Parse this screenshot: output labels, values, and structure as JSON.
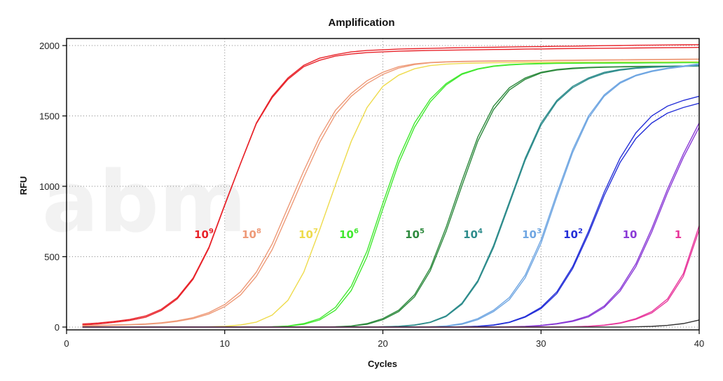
{
  "chart_data": {
    "type": "line",
    "title": "Amplification",
    "xlabel": "Cycles",
    "ylabel": "RFU",
    "xlim": [
      0,
      40
    ],
    "ylim": [
      -20,
      2050
    ],
    "x_ticks": [
      "0",
      "10",
      "20",
      "30",
      "40"
    ],
    "y_ticks": [
      "0",
      "500",
      "1000",
      "1500",
      "2000"
    ],
    "grid": true,
    "watermark": "abm",
    "x": [
      1,
      2,
      3,
      4,
      5,
      6,
      7,
      8,
      9,
      10,
      11,
      12,
      13,
      14,
      15,
      16,
      17,
      18,
      19,
      20,
      21,
      22,
      23,
      24,
      25,
      26,
      27,
      28,
      29,
      30,
      31,
      32,
      33,
      34,
      35,
      36,
      37,
      38,
      39,
      40
    ],
    "series": [
      {
        "label": "10",
        "exponent": "9",
        "color": "#e8232a",
        "replicates": [
          [
            22,
            29,
            40,
            54,
            79,
            127,
            209,
            348,
            567,
            870,
            1163,
            1450,
            1640,
            1770,
            1860,
            1910,
            1935,
            1955,
            1965,
            1970,
            1975,
            1978,
            1980,
            1983,
            1985,
            1987,
            1988,
            1990,
            1992,
            1993,
            1995,
            1996,
            1998,
            1999,
            2000,
            2002,
            2003,
            2004,
            2005,
            2006
          ],
          [
            15,
            22,
            33,
            47,
            70,
            118,
            200,
            340,
            560,
            865,
            1160,
            1445,
            1630,
            1760,
            1850,
            1895,
            1925,
            1940,
            1950,
            1955,
            1960,
            1963,
            1965,
            1967,
            1969,
            1970,
            1972,
            1973,
            1975,
            1976,
            1978,
            1979,
            1980,
            1981,
            1982,
            1983,
            1984,
            1985,
            1986,
            1987
          ]
        ]
      },
      {
        "label": "10",
        "exponent": "8",
        "color": "#ee9a78",
        "replicates": [
          [
            10,
            12,
            15,
            18,
            23,
            31,
            45,
            67,
            103,
            160,
            250,
            390,
            590,
            850,
            1110,
            1350,
            1540,
            1660,
            1750,
            1810,
            1850,
            1870,
            1880,
            1885,
            1888,
            1890,
            1891,
            1892,
            1893,
            1894,
            1895,
            1896,
            1897,
            1898,
            1899,
            1900,
            1901,
            1902,
            1903,
            1904
          ],
          [
            8,
            10,
            13,
            16,
            20,
            27,
            40,
            60,
            93,
            145,
            228,
            360,
            550,
            805,
            1065,
            1310,
            1510,
            1640,
            1730,
            1795,
            1840,
            1865,
            1878,
            1883,
            1886,
            1888,
            1889,
            1890,
            1891,
            1892,
            1893,
            1894,
            1895,
            1896,
            1897,
            1898,
            1899,
            1900,
            1901,
            1902
          ]
        ]
      },
      {
        "label": "10",
        "exponent": "7",
        "color": "#eedb4c",
        "replicates": [
          [
            0,
            0,
            0,
            0,
            0,
            0,
            0,
            0,
            2,
            5,
            15,
            35,
            85,
            190,
            390,
            690,
            1010,
            1320,
            1560,
            1710,
            1790,
            1835,
            1858,
            1868,
            1873,
            1876,
            1878,
            1879,
            1880,
            1880,
            1881,
            1881,
            1882,
            1882,
            1883,
            1883,
            1884,
            1884,
            1885,
            1885
          ]
        ]
      },
      {
        "label": "10",
        "exponent": "6",
        "color": "#42e830",
        "replicates": [
          [
            0,
            0,
            0,
            0,
            0,
            0,
            0,
            0,
            0,
            0,
            0,
            0,
            2,
            8,
            25,
            60,
            140,
            290,
            540,
            880,
            1200,
            1450,
            1620,
            1730,
            1800,
            1835,
            1855,
            1865,
            1870,
            1873,
            1875,
            1876,
            1877,
            1877,
            1878,
            1878,
            1879,
            1879,
            1880,
            1880
          ],
          [
            0,
            0,
            0,
            0,
            0,
            0,
            0,
            0,
            0,
            0,
            0,
            0,
            2,
            6,
            20,
            50,
            120,
            260,
            500,
            840,
            1165,
            1420,
            1600,
            1720,
            1795,
            1832,
            1852,
            1862,
            1868,
            1871,
            1873,
            1874,
            1875,
            1875,
            1876,
            1876,
            1877,
            1877,
            1878,
            1878
          ]
        ]
      },
      {
        "label": "10",
        "exponent": "5",
        "color": "#2e8a3e",
        "replicates": [
          [
            0,
            0,
            0,
            0,
            0,
            0,
            0,
            0,
            0,
            0,
            0,
            0,
            0,
            0,
            0,
            0,
            2,
            8,
            25,
            60,
            120,
            230,
            420,
            710,
            1040,
            1350,
            1570,
            1700,
            1770,
            1810,
            1830,
            1840,
            1845,
            1848,
            1850,
            1852,
            1853,
            1854,
            1855,
            1856
          ],
          [
            0,
            0,
            0,
            0,
            0,
            0,
            0,
            0,
            0,
            0,
            0,
            0,
            0,
            0,
            0,
            0,
            2,
            6,
            20,
            52,
            110,
            215,
            400,
            680,
            1005,
            1320,
            1545,
            1685,
            1760,
            1805,
            1826,
            1836,
            1842,
            1846,
            1848,
            1850,
            1851,
            1852,
            1853,
            1854
          ]
        ]
      },
      {
        "label": "10",
        "exponent": "4",
        "color": "#2e8c8c",
        "replicates": [
          [
            0,
            0,
            0,
            0,
            0,
            0,
            0,
            0,
            0,
            0,
            0,
            0,
            0,
            0,
            0,
            0,
            0,
            0,
            0,
            2,
            6,
            15,
            35,
            80,
            170,
            330,
            580,
            890,
            1200,
            1450,
            1610,
            1710,
            1770,
            1810,
            1830,
            1842,
            1848,
            1852,
            1855,
            1857
          ],
          [
            0,
            0,
            0,
            0,
            0,
            0,
            0,
            0,
            0,
            0,
            0,
            0,
            0,
            0,
            0,
            0,
            0,
            0,
            0,
            2,
            5,
            13,
            32,
            75,
            162,
            320,
            565,
            875,
            1185,
            1435,
            1600,
            1700,
            1762,
            1802,
            1825,
            1838,
            1845,
            1850,
            1853,
            1855
          ]
        ]
      },
      {
        "label": "10",
        "exponent": "3",
        "color": "#6fa6e2",
        "replicates": [
          [
            0,
            0,
            0,
            0,
            0,
            0,
            0,
            0,
            0,
            0,
            0,
            0,
            0,
            0,
            0,
            0,
            0,
            0,
            0,
            0,
            0,
            0,
            2,
            8,
            25,
            60,
            120,
            210,
            370,
            620,
            950,
            1260,
            1500,
            1650,
            1740,
            1790,
            1820,
            1840,
            1855,
            1870
          ],
          [
            0,
            0,
            0,
            0,
            0,
            0,
            0,
            0,
            0,
            0,
            0,
            0,
            0,
            0,
            0,
            0,
            0,
            0,
            0,
            0,
            0,
            0,
            2,
            6,
            20,
            52,
            110,
            195,
            350,
            595,
            925,
            1240,
            1485,
            1640,
            1732,
            1785,
            1815,
            1836,
            1850,
            1865
          ]
        ]
      },
      {
        "label": "10",
        "exponent": "2",
        "color": "#2530d8",
        "replicates": [
          [
            0,
            0,
            0,
            0,
            0,
            0,
            0,
            0,
            0,
            0,
            0,
            0,
            0,
            0,
            0,
            0,
            0,
            0,
            0,
            0,
            0,
            0,
            0,
            0,
            2,
            6,
            15,
            35,
            75,
            140,
            250,
            430,
            680,
            960,
            1200,
            1380,
            1500,
            1570,
            1610,
            1640
          ],
          [
            0,
            0,
            0,
            0,
            0,
            0,
            0,
            0,
            0,
            0,
            0,
            0,
            0,
            0,
            0,
            0,
            0,
            0,
            0,
            0,
            0,
            0,
            0,
            0,
            2,
            5,
            13,
            32,
            70,
            132,
            238,
            415,
            660,
            935,
            1170,
            1340,
            1450,
            1520,
            1560,
            1590
          ]
        ]
      },
      {
        "label": "10",
        "exponent": "",
        "color": "#8a3ad6",
        "replicates": [
          [
            0,
            0,
            0,
            0,
            0,
            0,
            0,
            0,
            0,
            0,
            0,
            0,
            0,
            0,
            0,
            0,
            0,
            0,
            0,
            0,
            0,
            0,
            0,
            0,
            0,
            0,
            0,
            2,
            5,
            12,
            25,
            45,
            80,
            150,
            270,
            450,
            700,
            980,
            1230,
            1450
          ],
          [
            0,
            0,
            0,
            0,
            0,
            0,
            0,
            0,
            0,
            0,
            0,
            0,
            0,
            0,
            0,
            0,
            0,
            0,
            0,
            0,
            0,
            0,
            0,
            0,
            0,
            0,
            0,
            2,
            4,
            10,
            22,
            40,
            72,
            140,
            255,
            430,
            675,
            955,
            1205,
            1420
          ]
        ]
      },
      {
        "label": "1",
        "exponent": "",
        "color": "#e8389c",
        "replicates": [
          [
            0,
            0,
            0,
            0,
            0,
            0,
            0,
            0,
            0,
            0,
            0,
            0,
            0,
            0,
            0,
            0,
            0,
            0,
            0,
            0,
            0,
            0,
            0,
            0,
            0,
            0,
            0,
            0,
            0,
            0,
            0,
            2,
            6,
            14,
            30,
            60,
            110,
            200,
            380,
            720
          ],
          [
            0,
            0,
            0,
            0,
            0,
            0,
            0,
            0,
            0,
            0,
            0,
            0,
            0,
            0,
            0,
            0,
            0,
            0,
            0,
            0,
            0,
            0,
            0,
            0,
            0,
            0,
            0,
            0,
            0,
            0,
            0,
            2,
            5,
            12,
            27,
            55,
            100,
            185,
            360,
            690
          ]
        ]
      },
      {
        "label": "",
        "exponent": "",
        "color": "#333333",
        "replicates": [
          [
            0,
            0,
            0,
            0,
            0,
            0,
            0,
            0,
            0,
            0,
            0,
            0,
            0,
            0,
            0,
            0,
            0,
            0,
            0,
            0,
            0,
            0,
            0,
            0,
            0,
            0,
            0,
            0,
            0,
            0,
            0,
            0,
            0,
            0,
            0,
            2,
            5,
            12,
            25,
            50
          ]
        ]
      }
    ]
  }
}
